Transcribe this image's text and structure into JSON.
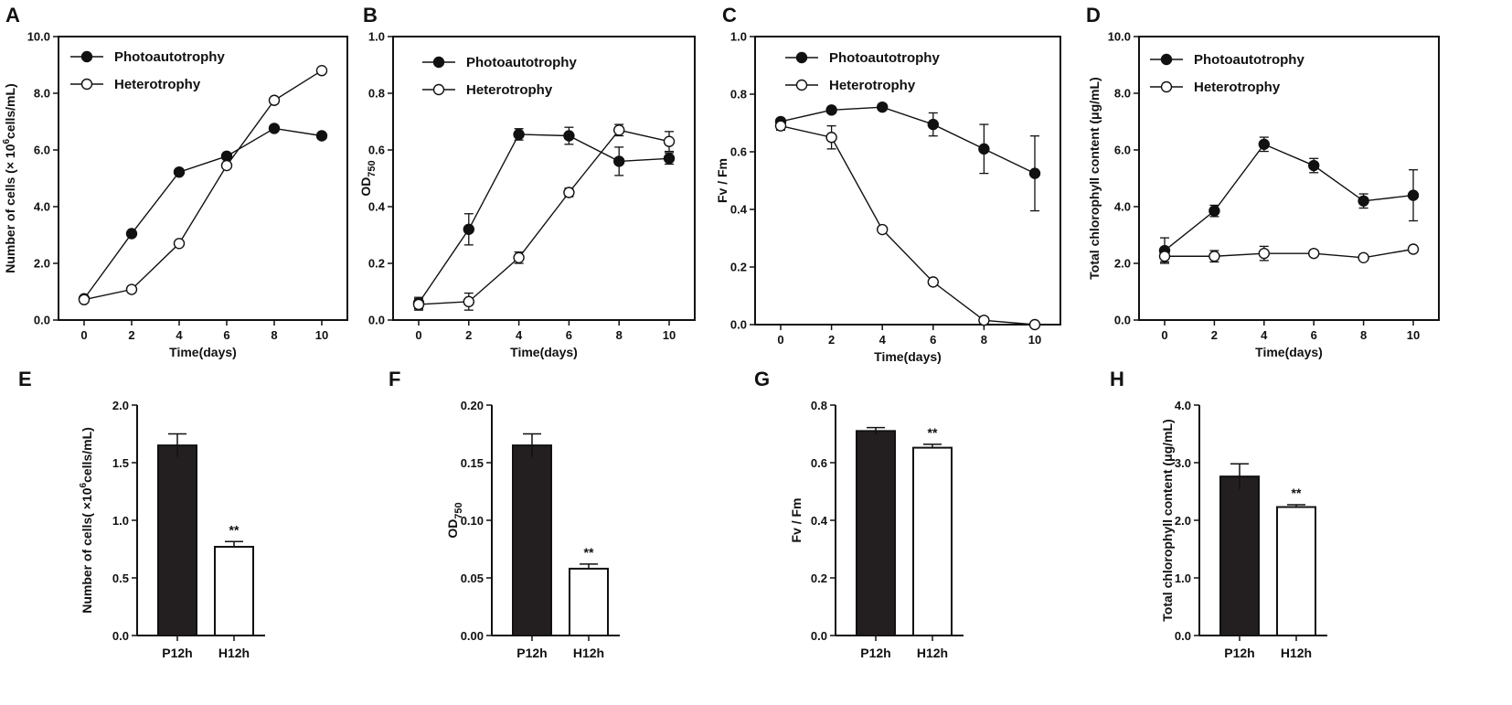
{
  "chart_data": [
    {
      "panel": "A",
      "type": "line",
      "x": [
        0,
        2,
        4,
        6,
        8,
        10
      ],
      "xlabel": "Time(days)",
      "ylabel": "Number of cells (× 10",
      "ylabel_sup": "6",
      "ylabel_tail": "cells/mL)",
      "ylim": [
        0,
        10
      ],
      "yticks": [
        0,
        2,
        4,
        6,
        8,
        10
      ],
      "ytick_labels": [
        "0.0",
        "2.0",
        "4.0",
        "6.0",
        "8.0",
        "10.0"
      ],
      "series": [
        {
          "name": "Photoautotrophy",
          "marker": "filled",
          "values": [
            0.75,
            3.05,
            5.22,
            5.78,
            6.76,
            6.5
          ],
          "errors": [
            0,
            0,
            0,
            0,
            0,
            0
          ]
        },
        {
          "name": "Heterotrophy",
          "marker": "open",
          "values": [
            0.72,
            1.08,
            2.7,
            5.45,
            7.75,
            8.8
          ],
          "errors": [
            0,
            0,
            0,
            0,
            0,
            0
          ]
        }
      ]
    },
    {
      "panel": "B",
      "type": "line",
      "x": [
        0,
        2,
        4,
        6,
        8,
        10
      ],
      "xlabel": "Time(days)",
      "ylabel": "OD",
      "ylabel_sub": "750",
      "ylim": [
        0,
        1
      ],
      "yticks": [
        0,
        0.2,
        0.4,
        0.6,
        0.8,
        1.0
      ],
      "ytick_labels": [
        "0.0",
        "0.2",
        "0.4",
        "0.6",
        "0.8",
        "1.0"
      ],
      "series": [
        {
          "name": "Photoautotrophy",
          "marker": "filled",
          "values": [
            0.06,
            0.32,
            0.655,
            0.65,
            0.56,
            0.57
          ],
          "errors": [
            0.02,
            0.055,
            0.02,
            0.03,
            0.05,
            0.02
          ]
        },
        {
          "name": "Heterotrophy",
          "marker": "open",
          "values": [
            0.055,
            0.065,
            0.22,
            0.45,
            0.67,
            0.63
          ],
          "errors": [
            0.02,
            0.03,
            0.02,
            0.015,
            0.02,
            0.035
          ]
        }
      ]
    },
    {
      "panel": "C",
      "type": "line",
      "x": [
        0,
        2,
        4,
        6,
        8,
        10
      ],
      "xlabel": "Time(days)",
      "ylabel": "Fv / Fm",
      "ylim": [
        0,
        1
      ],
      "yticks": [
        0,
        0.2,
        0.4,
        0.6,
        0.8,
        1.0
      ],
      "ytick_labels": [
        "0.0",
        "0.2",
        "0.4",
        "0.6",
        "0.8",
        "1.0"
      ],
      "series": [
        {
          "name": "Photoautotrophy",
          "marker": "filled",
          "values": [
            0.705,
            0.745,
            0.755,
            0.695,
            0.61,
            0.525
          ],
          "errors": [
            0.01,
            0.01,
            0.01,
            0.04,
            0.085,
            0.13
          ]
        },
        {
          "name": "Heterotrophy",
          "marker": "open",
          "values": [
            0.69,
            0.65,
            0.33,
            0.148,
            0.015,
            0.0
          ],
          "errors": [
            0.015,
            0.04,
            0.01,
            0.005,
            0.005,
            0.003
          ]
        }
      ]
    },
    {
      "panel": "D",
      "type": "line",
      "x": [
        0,
        2,
        4,
        6,
        8,
        10
      ],
      "xlabel": "Time(days)",
      "ylabel": "Total chlorophyll content (μg/mL)",
      "ylim": [
        0,
        10
      ],
      "yticks": [
        0,
        2,
        4,
        6,
        8,
        10
      ],
      "ytick_labels": [
        "0.0",
        "2.0",
        "4.0",
        "6.0",
        "8.0",
        "10.0"
      ],
      "series": [
        {
          "name": "Photoautotrophy",
          "marker": "filled",
          "values": [
            2.45,
            3.85,
            6.2,
            5.45,
            4.2,
            4.4
          ],
          "errors": [
            0.45,
            0.2,
            0.25,
            0.25,
            0.25,
            0.9
          ]
        },
        {
          "name": "Heterotrophy",
          "marker": "open",
          "values": [
            2.25,
            2.25,
            2.35,
            2.35,
            2.2,
            2.5
          ],
          "errors": [
            0.2,
            0.2,
            0.25,
            0.1,
            0.08,
            0.1
          ]
        }
      ]
    },
    {
      "panel": "E",
      "type": "bar",
      "categories": [
        "P12h",
        "H12h"
      ],
      "values": [
        1.65,
        0.77
      ],
      "errors": [
        0.1,
        0.045
      ],
      "fills": [
        "#231f20",
        "#ffffff"
      ],
      "significance": [
        "",
        "**"
      ],
      "ylabel": "Number of cells( ×10",
      "ylabel_sup": "6",
      "ylabel_tail": "cells/mL)",
      "ylim": [
        0,
        2.0
      ],
      "yticks": [
        0,
        0.5,
        1.0,
        1.5,
        2.0
      ],
      "ytick_labels": [
        "0.0",
        "0.5",
        "1.0",
        "1.5",
        "2.0"
      ]
    },
    {
      "panel": "F",
      "type": "bar",
      "categories": [
        "P12h",
        "H12h"
      ],
      "values": [
        0.165,
        0.058
      ],
      "errors": [
        0.01,
        0.004
      ],
      "fills": [
        "#231f20",
        "#ffffff"
      ],
      "significance": [
        "",
        "**"
      ],
      "ylabel": "OD",
      "ylabel_sub": "750",
      "ylim": [
        0,
        0.2
      ],
      "yticks": [
        0,
        0.05,
        0.1,
        0.15,
        0.2
      ],
      "ytick_labels": [
        "0.00",
        "0.05",
        "0.10",
        "0.15",
        "0.20"
      ]
    },
    {
      "panel": "G",
      "type": "bar",
      "categories": [
        "P12h",
        "H12h"
      ],
      "values": [
        0.71,
        0.652
      ],
      "errors": [
        0.012,
        0.012
      ],
      "fills": [
        "#231f20",
        "#ffffff"
      ],
      "significance": [
        "",
        "**"
      ],
      "ylabel": "Fv / Fm",
      "ylim": [
        0,
        0.8
      ],
      "yticks": [
        0,
        0.2,
        0.4,
        0.6,
        0.8
      ],
      "ytick_labels": [
        "0.0",
        "0.2",
        "0.4",
        "0.6",
        "0.8"
      ]
    },
    {
      "panel": "H",
      "type": "bar",
      "categories": [
        "P12h",
        "H12h"
      ],
      "values": [
        2.76,
        2.23
      ],
      "errors": [
        0.22,
        0.04
      ],
      "fills": [
        "#231f20",
        "#ffffff"
      ],
      "significance": [
        "",
        "**"
      ],
      "ylabel": "Total chlorophyll content (μg/mL)",
      "ylim": [
        0,
        4.0
      ],
      "yticks": [
        0,
        1,
        2,
        3,
        4
      ],
      "ytick_labels": [
        "0.0",
        "1.0",
        "2.0",
        "3.0",
        "4.0"
      ]
    }
  ]
}
